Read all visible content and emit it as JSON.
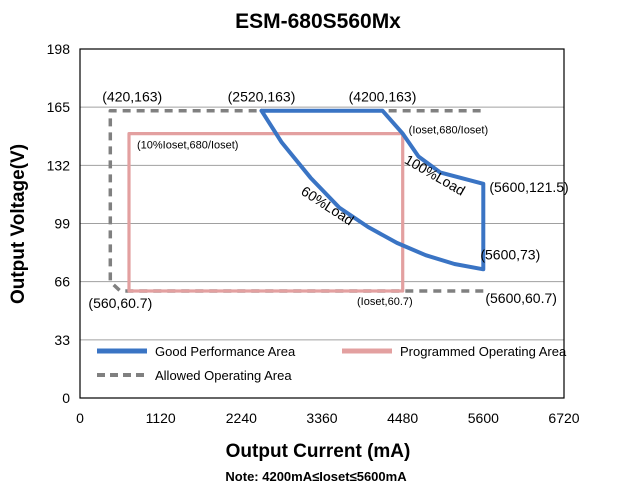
{
  "chart_data": {
    "type": "line",
    "title": "ESM-680S560Mx",
    "xlabel": "Output Current (mA)",
    "ylabel": "Output Voltage(V)",
    "note": "Note:  4200mA≤Ioset≤5600mA",
    "xlim": [
      0,
      6720
    ],
    "ylim": [
      0,
      198
    ],
    "x_ticks": [
      "0",
      "1120",
      "2240",
      "3360",
      "4480",
      "5600",
      "6720"
    ],
    "y_ticks": [
      "0",
      "33",
      "66",
      "99",
      "132",
      "165",
      "198"
    ],
    "grid": true,
    "colors": {
      "good": "#3a74c4",
      "programmed": "#e3a0a0",
      "allowed": "#808080",
      "grid": "#a0a0a0",
      "text": "#000000"
    },
    "series": [
      {
        "name": "Good Performance Area",
        "style": "solid",
        "points": [
          [
            2520,
            163
          ],
          [
            4200,
            163
          ],
          [
            4480,
            150
          ],
          [
            4700,
            137
          ],
          [
            5000,
            128
          ],
          [
            5600,
            121.5
          ],
          [
            5600,
            73
          ],
          [
            5200,
            76
          ],
          [
            4800,
            81
          ],
          [
            4400,
            88
          ],
          [
            4000,
            97
          ],
          [
            3600,
            108
          ],
          [
            3200,
            125
          ],
          [
            2800,
            145
          ],
          [
            2520,
            163
          ]
        ]
      },
      {
        "name": "Programmed Operating Area",
        "style": "solid",
        "points": [
          [
            4480,
            150
          ],
          [
            680,
            150
          ],
          [
            680,
            60.7
          ],
          [
            4480,
            60.7
          ],
          [
            4480,
            150
          ]
        ]
      },
      {
        "name": "Allowed Operating Area",
        "style": "dashed",
        "points": [
          [
            5600,
            60.7
          ],
          [
            560,
            60.7
          ],
          [
            420,
            66
          ],
          [
            420,
            163
          ],
          [
            5600,
            163
          ]
        ]
      }
    ],
    "legend": [
      {
        "label": "Good Performance Area",
        "key": "good",
        "style": "solid"
      },
      {
        "label": "Programmed Operating Area",
        "key": "programmed",
        "style": "solid"
      },
      {
        "label": "Allowed Operating Area",
        "key": "allowed",
        "style": "dashed"
      }
    ],
    "annotations": [
      {
        "text": "(420,163)",
        "x": 420,
        "y": 163,
        "size": "lg",
        "anchor": "start"
      },
      {
        "text": "(2520,163)",
        "x": 2520,
        "y": 163,
        "size": "lg",
        "anchor": "middle"
      },
      {
        "text": "(4200,163)",
        "x": 4200,
        "y": 163,
        "size": "lg",
        "anchor": "middle"
      },
      {
        "text": "(Ioset,680/Ioset)",
        "x": 4480,
        "y": 150,
        "size": "sm",
        "anchor": "start"
      },
      {
        "text": "(10%Ioset,680/Ioset)",
        "x": 680,
        "y": 150,
        "size": "sm",
        "anchor": "start"
      },
      {
        "text": "100%Load",
        "x": 4700,
        "y": 137,
        "size": "lg",
        "anchor": "start",
        "rotate": 30
      },
      {
        "text": "60%Load",
        "x": 3400,
        "y": 100,
        "size": "lg",
        "anchor": "middle",
        "rotate": 33
      },
      {
        "text": "(5600,121.5)",
        "x": 5600,
        "y": 121.5,
        "size": "lg",
        "anchor": "start"
      },
      {
        "text": "(5600,73)",
        "x": 5600,
        "y": 73,
        "size": "lg",
        "anchor": "start"
      },
      {
        "text": "(5600,60.7)",
        "x": 5600,
        "y": 60.7,
        "size": "lg",
        "anchor": "start"
      },
      {
        "text": "(Ioset,60.7)",
        "x": 4480,
        "y": 60.7,
        "size": "sm",
        "anchor": "end"
      },
      {
        "text": "(560,60.7)",
        "x": 560,
        "y": 60.7,
        "size": "lg",
        "anchor": "middle"
      }
    ]
  }
}
